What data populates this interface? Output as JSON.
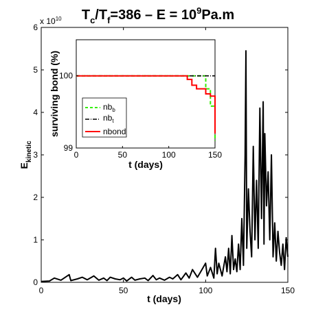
{
  "chart_data": [
    {
      "type": "line",
      "title_parts": {
        "t1": "T",
        "t1_sub": "c",
        "t2": "/T",
        "t2_sub": "f",
        "t3": "=386   –   E = 10",
        "t3_sup": "9",
        "t4": "Pa.m"
      },
      "xlabel": "t (days)",
      "ylabel_main": "E",
      "ylabel_sub": "kinetic",
      "xlim": [
        0,
        150
      ],
      "ylim": [
        0,
        6
      ],
      "y_multiplier_base": "x 10",
      "y_multiplier_exp": "10",
      "x_ticks": [
        "0",
        "50",
        "100",
        "150"
      ],
      "y_ticks": [
        "0",
        "1",
        "2",
        "3",
        "4",
        "5",
        "6"
      ],
      "grid": false,
      "series": [
        {
          "color": "#000000",
          "values_note_free": true,
          "x": [
            0,
            5,
            8,
            12,
            17,
            18,
            22,
            25,
            28,
            32,
            35,
            38,
            40,
            42,
            45,
            48,
            50,
            52,
            55,
            57,
            60,
            63,
            65,
            68,
            70,
            72,
            75,
            78,
            80,
            83,
            85,
            88,
            90,
            92,
            95,
            97,
            100,
            101,
            103,
            105,
            106,
            107,
            108,
            110,
            112,
            113,
            114,
            115,
            116,
            117,
            118,
            119,
            120,
            121,
            122,
            123,
            124,
            124.5,
            125,
            126,
            127,
            128,
            129,
            130,
            131,
            132,
            133,
            134,
            135,
            135.5,
            136,
            137,
            138,
            139,
            140,
            141,
            142,
            143,
            144,
            145,
            146,
            147,
            148,
            149,
            150
          ],
          "y": [
            0.02,
            0.03,
            0.1,
            0.05,
            0.18,
            0.04,
            0.08,
            0.12,
            0.06,
            0.15,
            0.05,
            0.1,
            0.04,
            0.12,
            0.08,
            0.06,
            0.1,
            0.03,
            0.12,
            0.05,
            0.08,
            0.1,
            0.04,
            0.16,
            0.06,
            0.1,
            0.05,
            0.12,
            0.08,
            0.18,
            0.06,
            0.22,
            0.1,
            0.3,
            0.12,
            0.25,
            0.45,
            0.15,
            0.35,
            0.1,
            0.8,
            0.2,
            0.45,
            0.15,
            0.6,
            0.25,
            0.8,
            0.2,
            1.1,
            0.3,
            0.55,
            0.25,
            0.9,
            0.3,
            1.5,
            0.4,
            3.0,
            5.45,
            0.8,
            2.2,
            1.2,
            0.6,
            3.2,
            1.0,
            2.4,
            0.8,
            4.1,
            1.5,
            4.25,
            0.9,
            3.5,
            1.8,
            2.6,
            1.0,
            3.0,
            0.6,
            1.4,
            0.5,
            1.2,
            0.7,
            0.4,
            0.9,
            0.3,
            1.05,
            0.6
          ]
        }
      ]
    },
    {
      "type": "line",
      "xlabel": "t (days)",
      "ylabel": "surviving bond (%)",
      "xlim": [
        0,
        150
      ],
      "ylim": [
        99,
        100.5
      ],
      "x_ticks": [
        "0",
        "50",
        "100",
        "150"
      ],
      "y_ticks": [
        "99",
        "100"
      ],
      "grid": false,
      "legend": "lower-left",
      "series": [
        {
          "name": "nb",
          "name_sub": "b",
          "color": "#33ee00",
          "style": "dashed",
          "x": [
            0,
            140,
            140,
            145,
            145,
            150,
            150
          ],
          "y": [
            100,
            100,
            99.82,
            99.82,
            99.58,
            99.58,
            99.1
          ]
        },
        {
          "name": "nb",
          "name_sub": "t",
          "color": "#000000",
          "style": "dash-dot",
          "x": [
            0,
            150
          ],
          "y": [
            100,
            100
          ]
        },
        {
          "name": "nbond",
          "color": "#ff0000",
          "style": "solid",
          "x": [
            0,
            120,
            120,
            125,
            125,
            130,
            130,
            140,
            140,
            145,
            145,
            150,
            150
          ],
          "y": [
            100,
            100,
            99.95,
            99.95,
            99.87,
            99.87,
            99.82,
            99.82,
            99.75,
            99.75,
            99.72,
            99.72,
            99.2
          ]
        }
      ]
    }
  ]
}
